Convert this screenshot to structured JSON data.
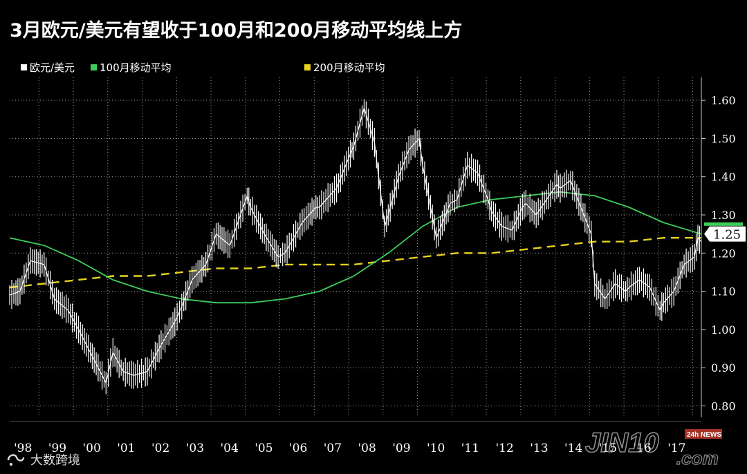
{
  "title": "3月欧元/美元有望收于100月和200月移动平均线上方",
  "legend": [
    {
      "label": "欧元/美元",
      "color": "#ffffff"
    },
    {
      "label": "100月移动平均",
      "color": "#3ecf5a"
    },
    {
      "label": "200月移动平均",
      "color": "#e6d21e"
    }
  ],
  "watermark_left": "大数跨境",
  "watermark_right": {
    "brand": "JIN10",
    "domain": ".com",
    "badge": "24h NEWS"
  },
  "chart_data": {
    "type": "line",
    "title": "3月欧元/美元有望收于100月和200月移动平均线上方",
    "xlabel": "",
    "ylabel": "",
    "ylim": [
      0.77,
      1.66
    ],
    "xlim": [
      1998.0,
      2018.1
    ],
    "yticks": [
      0.8,
      0.9,
      1.0,
      1.1,
      1.2,
      1.3,
      1.4,
      1.5,
      1.6
    ],
    "ytick_labels": [
      "0.80",
      "0.90",
      "1.00",
      "1.10",
      "1.20",
      "1.30",
      "1.40",
      "1.50",
      "1.60"
    ],
    "xtick_labels": [
      "'98",
      "'99",
      "'00",
      "'01",
      "'02",
      "'03",
      "'04",
      "'05",
      "'06",
      "'07",
      "'08",
      "'09",
      "'10",
      "'11",
      "'12",
      "'13",
      "'14",
      "'15",
      "'16",
      "'17"
    ],
    "last_value_label": "1.25",
    "grid": true,
    "legend_position": "top-left",
    "series": [
      {
        "name": "欧元/美元",
        "color": "#ffffff",
        "x": [
          1998.0,
          1998.3,
          1998.6,
          1999.0,
          1999.3,
          1999.7,
          2000.0,
          2000.4,
          2000.8,
          2001.0,
          2001.3,
          2001.6,
          2002.0,
          2002.4,
          2002.8,
          2003.0,
          2003.3,
          2003.7,
          2004.0,
          2004.4,
          2004.9,
          2005.0,
          2005.4,
          2005.8,
          2006.0,
          2006.5,
          2006.9,
          2007.0,
          2007.5,
          2007.9,
          2008.0,
          2008.3,
          2008.6,
          2008.9,
          2009.0,
          2009.3,
          2009.6,
          2009.9,
          2010.0,
          2010.4,
          2010.8,
          2011.0,
          2011.3,
          2011.6,
          2011.9,
          2012.0,
          2012.3,
          2012.6,
          2012.9,
          2013.0,
          2013.3,
          2013.6,
          2013.9,
          2014.0,
          2014.3,
          2014.6,
          2014.9,
          2015.0,
          2015.3,
          2015.6,
          2015.9,
          2016.0,
          2016.3,
          2016.6,
          2016.9,
          2017.0,
          2017.3,
          2017.6,
          2017.9,
          2018.0,
          2018.1
        ],
        "values": [
          1.09,
          1.1,
          1.18,
          1.17,
          1.08,
          1.05,
          1.0,
          0.93,
          0.86,
          0.94,
          0.89,
          0.88,
          0.89,
          0.96,
          1.02,
          1.06,
          1.13,
          1.17,
          1.25,
          1.22,
          1.35,
          1.32,
          1.25,
          1.19,
          1.2,
          1.28,
          1.32,
          1.32,
          1.37,
          1.46,
          1.48,
          1.58,
          1.49,
          1.27,
          1.3,
          1.4,
          1.47,
          1.5,
          1.43,
          1.24,
          1.33,
          1.34,
          1.43,
          1.41,
          1.34,
          1.31,
          1.27,
          1.26,
          1.32,
          1.33,
          1.3,
          1.34,
          1.38,
          1.37,
          1.39,
          1.32,
          1.25,
          1.12,
          1.08,
          1.12,
          1.1,
          1.11,
          1.13,
          1.11,
          1.05,
          1.07,
          1.1,
          1.17,
          1.19,
          1.24,
          1.23
        ]
      },
      {
        "name": "100月移动平均",
        "color": "#3ecf5a",
        "x": [
          1998.0,
          1999.0,
          2000.0,
          2001.0,
          2002.0,
          2003.0,
          2004.0,
          2005.0,
          2006.0,
          2007.0,
          2008.0,
          2009.0,
          2010.0,
          2011.0,
          2012.0,
          2013.0,
          2014.0,
          2015.0,
          2016.0,
          2017.0,
          2018.1
        ],
        "values": [
          1.24,
          1.22,
          1.18,
          1.13,
          1.1,
          1.08,
          1.07,
          1.07,
          1.08,
          1.1,
          1.14,
          1.2,
          1.27,
          1.32,
          1.34,
          1.35,
          1.36,
          1.35,
          1.32,
          1.28,
          1.25
        ]
      },
      {
        "name": "200月移动平均",
        "color": "#e6d21e",
        "x": [
          1998.0,
          1999.0,
          2000.0,
          2001.0,
          2002.0,
          2003.0,
          2004.0,
          2005.0,
          2006.0,
          2007.0,
          2008.0,
          2009.0,
          2010.0,
          2011.0,
          2012.0,
          2013.0,
          2014.0,
          2015.0,
          2016.0,
          2017.0,
          2018.1
        ],
        "values": [
          1.11,
          1.12,
          1.13,
          1.14,
          1.14,
          1.15,
          1.16,
          1.16,
          1.17,
          1.17,
          1.17,
          1.18,
          1.19,
          1.2,
          1.2,
          1.21,
          1.22,
          1.23,
          1.23,
          1.24,
          1.24
        ]
      }
    ]
  }
}
